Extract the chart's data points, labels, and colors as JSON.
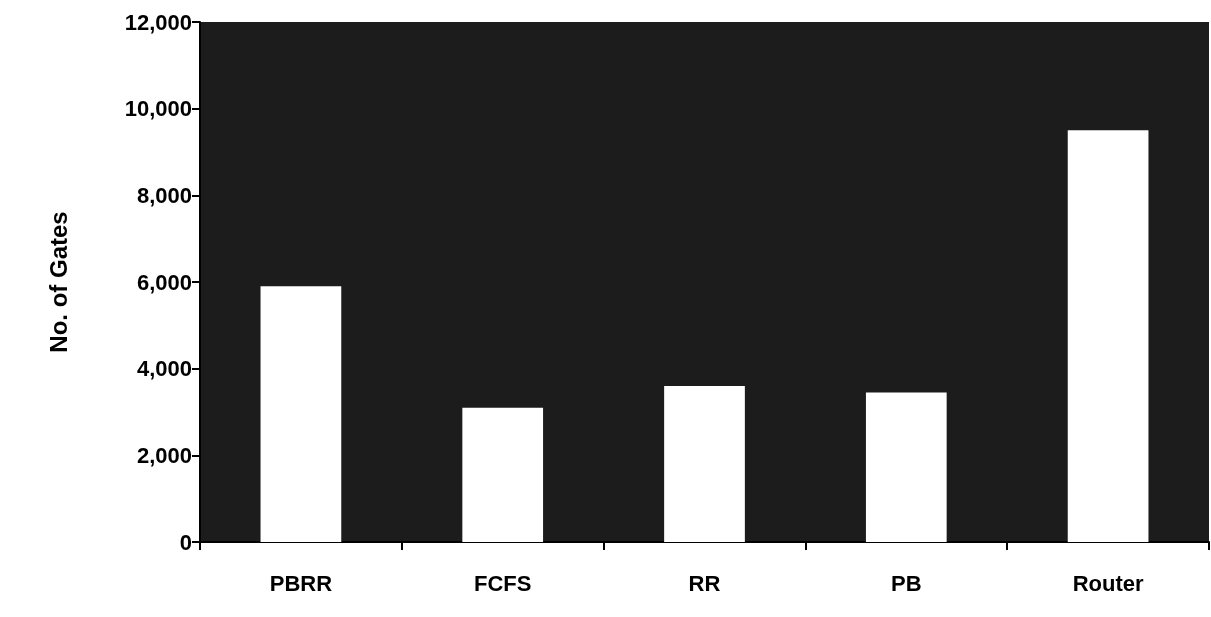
{
  "chart_data": {
    "type": "bar",
    "ylabel": "No. of Gates",
    "categories": [
      "PBRR",
      "FCFS",
      "RR",
      "PB",
      "Router"
    ],
    "values": [
      5900,
      3100,
      3600,
      3450,
      9500
    ],
    "color": "#ffffff",
    "ylim": [
      0,
      12000
    ],
    "yticks": [
      0,
      {
        "value": 2000,
        "label": "2,000"
      },
      {
        "value": 4000,
        "label": "4,000"
      },
      {
        "value": 6000,
        "label": "6,000"
      },
      {
        "value": 8000,
        "label": "8,000"
      },
      {
        "value": 10000,
        "label": "10,000"
      },
      {
        "value": 12000,
        "label": "12,000"
      }
    ],
    "grid": false
  }
}
